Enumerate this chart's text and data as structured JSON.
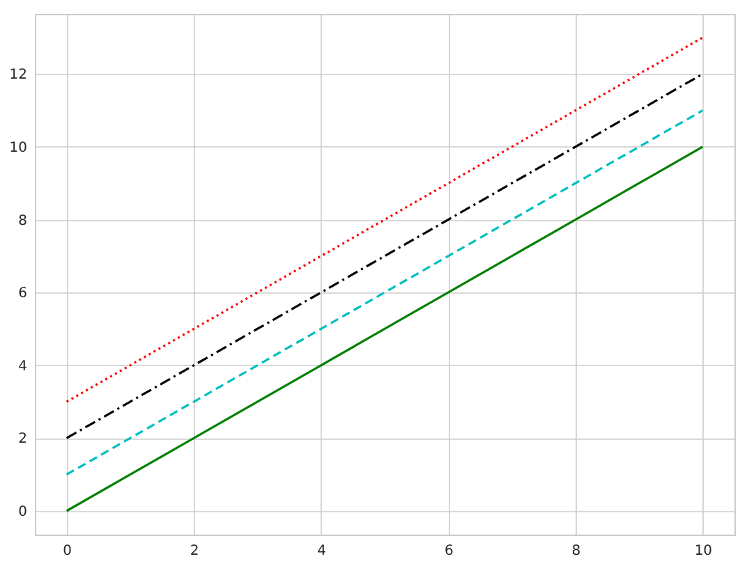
{
  "chart_data": {
    "type": "line",
    "x": [
      0,
      1,
      2,
      3,
      4,
      5,
      6,
      7,
      8,
      9,
      10
    ],
    "series": [
      {
        "color": "#008000",
        "line_style": "solid",
        "values": [
          0,
          1,
          2,
          3,
          4,
          5,
          6,
          7,
          8,
          9,
          10
        ]
      },
      {
        "color": "#00bfbf",
        "line_style": "dashed",
        "values": [
          1,
          2,
          3,
          4,
          5,
          6,
          7,
          8,
          9,
          10,
          11
        ]
      },
      {
        "color": "#000000",
        "line_style": "dashdot",
        "values": [
          2,
          3,
          4,
          5,
          6,
          7,
          8,
          9,
          10,
          11,
          12
        ]
      },
      {
        "color": "#ff0000",
        "line_style": "dotted",
        "values": [
          3,
          4,
          5,
          6,
          7,
          8,
          9,
          10,
          11,
          12,
          13
        ]
      }
    ],
    "xlim": [
      -0.5,
      10.5
    ],
    "ylim": [
      -0.65,
      13.65
    ],
    "xticks": [
      0,
      2,
      4,
      6,
      8,
      10
    ],
    "yticks": [
      0,
      2,
      4,
      6,
      8,
      10,
      12
    ],
    "grid": true,
    "legend": false,
    "marker": "none"
  }
}
